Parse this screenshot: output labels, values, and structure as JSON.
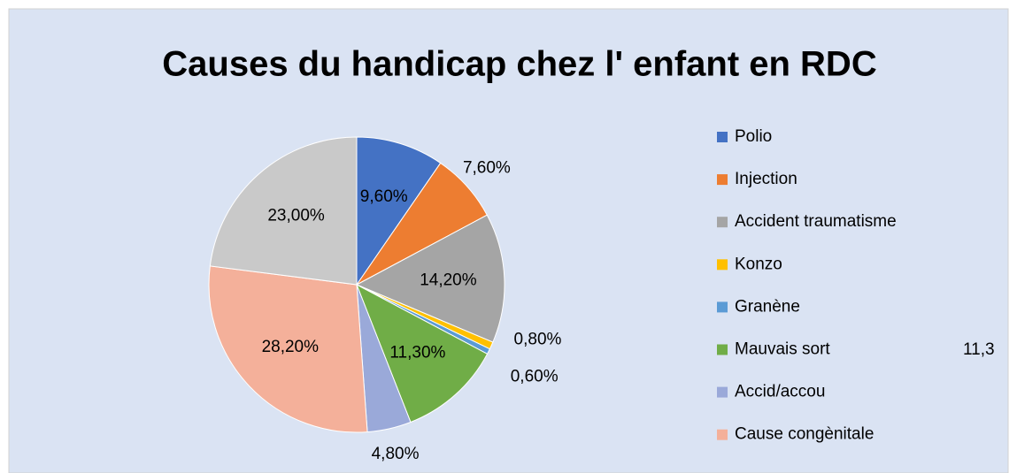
{
  "chart_data": {
    "type": "pie",
    "title": "Causes du handicap chez l' enfant en RDC",
    "categories": [
      "Polio",
      "Injection",
      "Accident traumatisme",
      "Konzo",
      "Granène",
      "Mauvais sort",
      "Accid/accou",
      "Cause congènitale",
      null
    ],
    "values": [
      9.6,
      7.6,
      14.2,
      0.8,
      0.6,
      11.3,
      4.8,
      28.2,
      23
    ],
    "value_labels": [
      "9,60%",
      "7,60%",
      "14,20%",
      "0,80%",
      "0,60%",
      "11,30%",
      "4,80%",
      "28,20%",
      "23,00%"
    ],
    "colors": [
      "#4472c4",
      "#ed7d31",
      "#a5a5a5",
      "#ffc000",
      "#5b9bd5",
      "#70ad47",
      "#9aa9d9",
      "#f4b09a",
      "#c9c9c9"
    ],
    "annotation": "11,3"
  }
}
